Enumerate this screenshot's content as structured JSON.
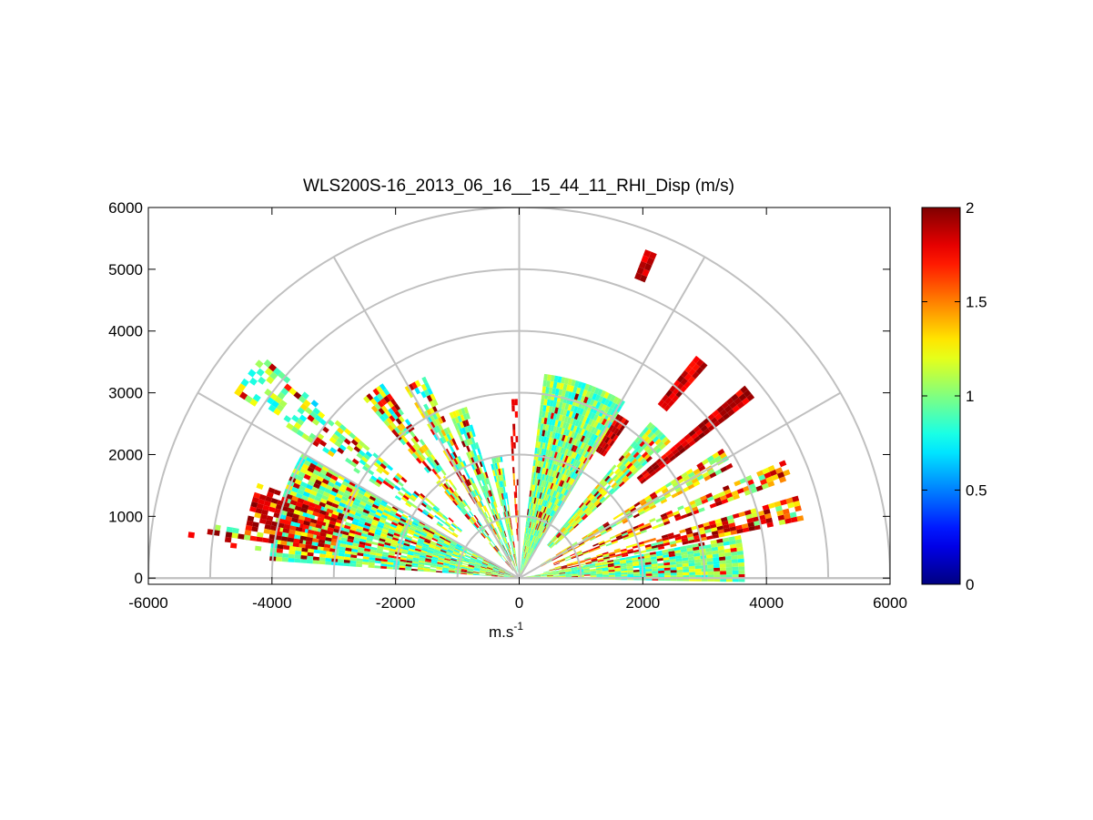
{
  "chart_data": {
    "type": "polar-sector-heatmap",
    "title": "WLS200S-16_2013_06_16__15_44_11_RHI_Disp (m/s)",
    "xlabel": "m.s",
    "xlabel_superscript": "-1",
    "ylabel": "",
    "xlim": [
      -6000,
      6000
    ],
    "ylim": [
      -100,
      6000
    ],
    "x_ticks": [
      "-6000",
      "-4000",
      "-2000",
      "0",
      "2000",
      "4000",
      "6000"
    ],
    "y_ticks": [
      "0",
      "1000",
      "2000",
      "3000",
      "4000",
      "5000",
      "6000"
    ],
    "range_rings": [
      1000,
      2000,
      3000,
      4000,
      5000,
      6000
    ],
    "spokes_deg": [
      0,
      30,
      60,
      90,
      120,
      150,
      180
    ],
    "colorbar": {
      "min": 0,
      "max": 2,
      "ticks": [
        "0",
        "0.5",
        "1",
        "1.5",
        "2"
      ],
      "colormap": "jet"
    },
    "colormap_colors": [
      "#000080",
      "#0000ff",
      "#00ffff",
      "#ffff00",
      "#ff0000",
      "#800000"
    ],
    "grid_color": "#c0c0c0",
    "sectors": [
      {
        "center_deg": 5,
        "half_width_deg": 6,
        "r_min": 50,
        "r_max": 3600,
        "base": 1.0,
        "spread": 0.25,
        "hot_prob": 0.06,
        "density": 0.95
      },
      {
        "center_deg": 14,
        "half_width_deg": 2.5,
        "r_min": 400,
        "r_max": 4700,
        "base": 1.25,
        "spread": 0.35,
        "hot_prob": 0.45,
        "density": 0.8
      },
      {
        "center_deg": 22,
        "half_width_deg": 2,
        "r_min": 600,
        "r_max": 4650,
        "base": 1.2,
        "spread": 0.3,
        "hot_prob": 0.35,
        "density": 0.75
      },
      {
        "center_deg": 30,
        "half_width_deg": 2.5,
        "r_min": 400,
        "r_max": 3900,
        "base": 1.2,
        "spread": 0.3,
        "hot_prob": 0.2,
        "density": 0.85
      },
      {
        "center_deg": 39,
        "half_width_deg": 1.5,
        "r_min": 2500,
        "r_max": 4800,
        "base": 2.0,
        "spread": 0.0,
        "hot_prob": 1.0,
        "density": 1.0
      },
      {
        "center_deg": 46,
        "half_width_deg": 4,
        "r_min": 700,
        "r_max": 3300,
        "base": 1.1,
        "spread": 0.3,
        "hot_prob": 0.15,
        "density": 0.95
      },
      {
        "center_deg": 50,
        "half_width_deg": 1.5,
        "r_min": 3600,
        "r_max": 4600,
        "base": 2.0,
        "spread": 0.0,
        "hot_prob": 1.0,
        "density": 1.0
      },
      {
        "center_deg": 57,
        "half_width_deg": 2,
        "r_min": 2400,
        "r_max": 3100,
        "base": 2.0,
        "spread": 0.0,
        "hot_prob": 1.0,
        "density": 1.0
      },
      {
        "center_deg": 71,
        "half_width_deg": 12,
        "r_min": 30,
        "r_max": 3300,
        "base": 1.0,
        "spread": 0.25,
        "hot_prob": 0.05,
        "density": 1.0
      },
      {
        "center_deg": 68,
        "half_width_deg": 1,
        "r_min": 5200,
        "r_max": 5650,
        "base": 2.0,
        "spread": 0.0,
        "hot_prob": 1.0,
        "density": 1.0
      },
      {
        "center_deg": 92,
        "half_width_deg": 1.5,
        "r_min": 600,
        "r_max": 2900,
        "base": 1.4,
        "spread": 0.5,
        "hot_prob": 0.5,
        "density": 0.35
      },
      {
        "center_deg": 101,
        "half_width_deg": 3,
        "r_min": 100,
        "r_max": 2000,
        "base": 1.0,
        "spread": 0.3,
        "hot_prob": 0.1,
        "density": 0.9
      },
      {
        "center_deg": 110,
        "half_width_deg": 3,
        "r_min": 100,
        "r_max": 2900,
        "base": 1.0,
        "spread": 0.3,
        "hot_prob": 0.15,
        "density": 0.9
      },
      {
        "center_deg": 118,
        "half_width_deg": 3,
        "r_min": 100,
        "r_max": 3600,
        "base": 1.05,
        "spread": 0.35,
        "hot_prob": 0.25,
        "density": 0.8
      },
      {
        "center_deg": 128,
        "half_width_deg": 3,
        "r_min": 150,
        "r_max": 3800,
        "base": 1.05,
        "spread": 0.35,
        "hot_prob": 0.25,
        "density": 0.75
      },
      {
        "center_deg": 143,
        "half_width_deg": 4,
        "r_min": 1200,
        "r_max": 5500,
        "base": 1.0,
        "spread": 0.35,
        "hot_prob": 0.15,
        "density": 0.5
      },
      {
        "center_deg": 163,
        "half_width_deg": 13,
        "r_min": 50,
        "r_max": 4000,
        "base": 1.0,
        "spread": 0.3,
        "hot_prob": 0.15,
        "density": 0.95
      },
      {
        "center_deg": 166,
        "half_width_deg": 6,
        "r_min": 3000,
        "r_max": 4500,
        "base": 1.6,
        "spread": 0.4,
        "hot_prob": 0.6,
        "density": 0.8
      },
      {
        "center_deg": 172,
        "half_width_deg": 2,
        "r_min": 4200,
        "r_max": 5400,
        "base": 1.0,
        "spread": 0.2,
        "hot_prob": 0.3,
        "density": 0.3
      }
    ]
  }
}
